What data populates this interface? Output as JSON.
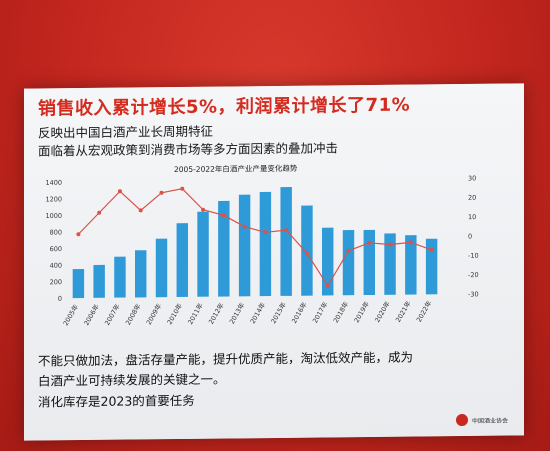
{
  "slide": {
    "headline": "销售收入累计增长5%，利润累计增长了71%",
    "sub1": "反映出中国白酒产业长周期特征",
    "sub2": "面临着从宏观政策到消费市场等多方面因素的叠加冲击",
    "body1": "不能只做加法，盘活存量产能，提升优质产能，淘汰低效产能，成为",
    "body2": "白酒产业可持续发展的关键之一。",
    "body3": "消化库存是2023的首要任务",
    "logo_text": "中国酒业协会"
  },
  "colors": {
    "bar": "#2e9ad8",
    "line": "#d9534a",
    "headline": "#d42b1f"
  },
  "chart_data": {
    "type": "bar",
    "title": "2005-2022年白酒产业产量变化趋势",
    "categories": [
      "2005年",
      "2006年",
      "2007年",
      "2008年",
      "2009年",
      "2010年",
      "2011年",
      "2012年",
      "2013年",
      "2014年",
      "2015年",
      "2016年",
      "2017年",
      "2018年",
      "2019年",
      "2020年",
      "2021年",
      "2022年"
    ],
    "series": [
      {
        "type": "bar",
        "axis": "left",
        "values": [
          350,
          397,
          494,
          569,
          706,
          891,
          1026,
          1153,
          1226,
          1257,
          1313,
          1087,
          818,
          786,
          785,
          740,
          716,
          671
        ]
      },
      {
        "type": "line",
        "axis": "right",
        "values": [
          3,
          14,
          25,
          15,
          24,
          26,
          15,
          12,
          6,
          3,
          4,
          -8,
          -25,
          -7,
          -3,
          -4,
          -3,
          -7
        ]
      }
    ],
    "ylim_left": [
      0,
      1400
    ],
    "ylim_right": [
      -30,
      30
    ],
    "yticks_left": [
      "0",
      "200",
      "400",
      "600",
      "800",
      "1000",
      "1200",
      "1400"
    ],
    "yticks_right": [
      "30",
      "20",
      "10",
      "0",
      "-10",
      "-20",
      "-30"
    ],
    "grid": false,
    "legend": "none"
  }
}
